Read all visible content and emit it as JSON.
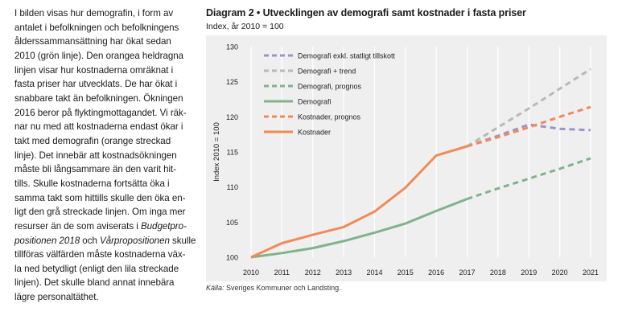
{
  "body_text": {
    "line1": "I bilden visas hur demografin, i form av",
    "line2": "antalet i befolkningen och befolkningens",
    "line3": "ålderssammansättning har ökat sedan",
    "line4": "2010 (grön linje). Den orangea heldragna",
    "line5": "linjen visar hur kostnaderna omräknat i",
    "line6": "fasta priser har utvecklats. De har ökat i",
    "line7": "snabbare takt än befolkningen. Ökningen",
    "line8": "2016 beror på flyktingmottagandet. Vi räk-",
    "line9": "nar nu med att kostnaderna endast ökar i",
    "line10": "takt med demografin (orange streckad",
    "line11": "linje). Det innebär att kostnadsökningen",
    "line12": "måste bli långsammare än den varit hit-",
    "line13": "tills. Skulle kostnaderna fortsätta öka i",
    "line14": "samma takt som hittills skulle den öka en-",
    "line15": "ligt den grå streckade linjen. Om inga mer",
    "line16a": "resurser än de som aviserats i ",
    "line16b": "Budgetpro-",
    "line17a": "positionen 2018",
    "line17b": " och ",
    "line17c": "Vårpropositionen",
    "line17d": " skulle",
    "line18": "tillföras välfärden måste kostnaderna väx-",
    "line19": "la ned betydligt (enligt den lila streckade",
    "line20": "linjen). Det skulle bland annat innebära",
    "line21": "lägre personaltäthet."
  },
  "source": {
    "label": "Källa:",
    "text": " Sveriges Kommuner och Landsting."
  },
  "chart_data": {
    "type": "line",
    "title": "Diagram 2 • Utvecklingen av demografi samt kostnader i fasta priser",
    "subtitle": "Index, år 2010 = 100",
    "ylabel": "Index 2010 = 100",
    "xlabel": "",
    "x": [
      2010,
      2011,
      2012,
      2013,
      2014,
      2015,
      2016,
      2017,
      2018,
      2019,
      2020,
      2021
    ],
    "ylim": [
      100,
      130
    ],
    "yticks": [
      100,
      105,
      110,
      115,
      120,
      125,
      130
    ],
    "grid": true,
    "legend_position": "top-left",
    "series": [
      {
        "name": "Demografi exkl. statligt tillskott",
        "style": "dashed",
        "color": "#9b93cf",
        "x": [
          2017,
          2018,
          2019,
          2020,
          2021
        ],
        "values": [
          115.8,
          117.3,
          118.9,
          118.3,
          118.1
        ]
      },
      {
        "name": "Demografi + trend",
        "style": "dashed",
        "color": "#b8b8b8",
        "x": [
          2017,
          2018,
          2019,
          2020,
          2021
        ],
        "values": [
          115.8,
          118.5,
          121.2,
          124.0,
          126.8
        ]
      },
      {
        "name": "Demografi, prognos",
        "style": "dashed",
        "color": "#7fb38b",
        "x": [
          2017,
          2018,
          2019,
          2020,
          2021
        ],
        "values": [
          108.3,
          109.8,
          111.2,
          112.6,
          114.1
        ]
      },
      {
        "name": "Demografi",
        "style": "solid",
        "color": "#7fb38b",
        "x": [
          2010,
          2011,
          2012,
          2013,
          2014,
          2015,
          2016,
          2017
        ],
        "values": [
          100.0,
          100.6,
          101.3,
          102.3,
          103.5,
          104.8,
          106.6,
          108.3
        ]
      },
      {
        "name": "Kostnader, prognos",
        "style": "dashed",
        "color": "#f08a57",
        "x": [
          2017,
          2018,
          2019,
          2020,
          2021
        ],
        "values": [
          115.8,
          117.1,
          118.5,
          120.0,
          121.4
        ]
      },
      {
        "name": "Kostnader",
        "style": "solid",
        "color": "#f08a57",
        "x": [
          2010,
          2011,
          2012,
          2013,
          2014,
          2015,
          2016,
          2017
        ],
        "values": [
          100.0,
          102.0,
          103.2,
          104.3,
          106.5,
          109.9,
          114.5,
          115.8
        ]
      }
    ]
  }
}
